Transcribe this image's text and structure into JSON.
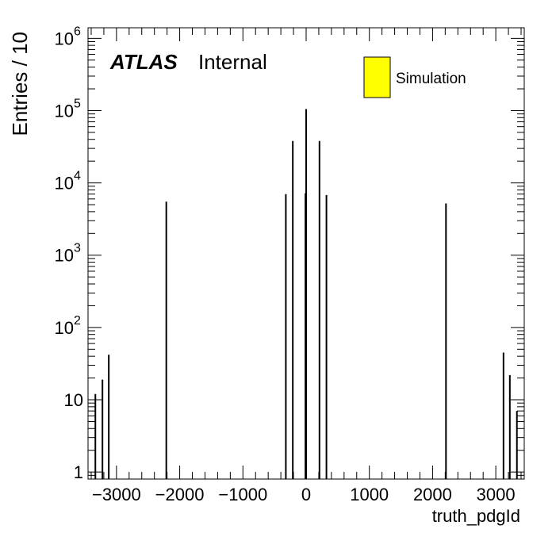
{
  "chart_data": {
    "type": "bar",
    "title": "",
    "xlabel": "truth_pdgId",
    "ylabel": "Entries / 10",
    "xlim": [
      -3450,
      3450
    ],
    "ylim": [
      0.8,
      1400000
    ],
    "y_scale": "log",
    "grid": false,
    "x_ticks": [
      -3000,
      -2000,
      -1000,
      0,
      1000,
      2000,
      3000
    ],
    "x_tick_labels": [
      "−3000",
      "−2000",
      "−1000",
      "0",
      "1000",
      "2000",
      "3000"
    ],
    "y_ticks": [
      {
        "value": 1,
        "base": "1",
        "exp": ""
      },
      {
        "value": 10,
        "base": "10",
        "exp": ""
      },
      {
        "value": 100,
        "base": "10",
        "exp": "2"
      },
      {
        "value": 1000,
        "base": "10",
        "exp": "3"
      },
      {
        "value": 10000,
        "base": "10",
        "exp": "4"
      },
      {
        "value": 100000,
        "base": "10",
        "exp": "5"
      },
      {
        "value": 1000000,
        "base": "10",
        "exp": "6"
      }
    ],
    "atlas_label": "ATLAS",
    "atlas_sublabel": "Internal",
    "legend_position": "top-right",
    "series": [
      {
        "name": "Simulation",
        "color": "#ffff00",
        "points": [
          {
            "x": -3334,
            "y": 12
          },
          {
            "x": -3222,
            "y": 19
          },
          {
            "x": -3122,
            "y": 42
          },
          {
            "x": -2212,
            "y": 5500
          },
          {
            "x": -321,
            "y": 7000
          },
          {
            "x": -211,
            "y": 38000
          },
          {
            "x": -11,
            "y": 7200
          },
          {
            "x": 0,
            "y": 105000
          },
          {
            "x": 211,
            "y": 38000
          },
          {
            "x": 321,
            "y": 6800
          },
          {
            "x": 2212,
            "y": 5200
          },
          {
            "x": 3122,
            "y": 45
          },
          {
            "x": 3222,
            "y": 22
          },
          {
            "x": 3334,
            "y": 7
          }
        ]
      }
    ]
  }
}
